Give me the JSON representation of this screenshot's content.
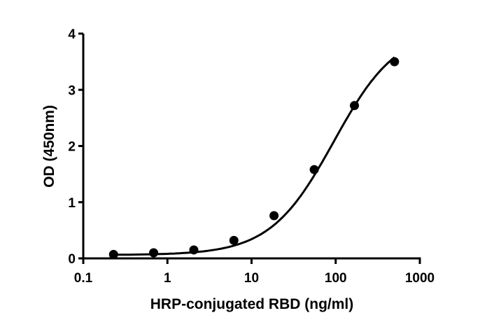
{
  "chart_data": {
    "type": "scatter",
    "title": "",
    "xlabel": "HRP-conjugated RBD (ng/ml)",
    "ylabel": "OD (450nm)",
    "xscale": "log",
    "xlim": [
      0.1,
      1000
    ],
    "ylim": [
      0,
      4
    ],
    "x_ticks": [
      0.1,
      1,
      10,
      100,
      1000
    ],
    "x_tick_labels": [
      "0.1",
      "1",
      "10",
      "100",
      "1000"
    ],
    "y_ticks": [
      0,
      1,
      2,
      3,
      4
    ],
    "y_tick_labels": [
      "0",
      "1",
      "2",
      "3",
      "4"
    ],
    "grid": false,
    "legend": null,
    "series": [
      {
        "name": "HRP-conjugated RBD",
        "marker": "filled-circle",
        "fit": "sigmoidal 4PL curve",
        "color": "#000000",
        "x": [
          0.229,
          0.686,
          2.06,
          6.17,
          18.5,
          55.6,
          167,
          500
        ],
        "y": [
          0.07,
          0.1,
          0.15,
          0.32,
          0.76,
          1.58,
          2.72,
          3.5
        ]
      }
    ]
  }
}
